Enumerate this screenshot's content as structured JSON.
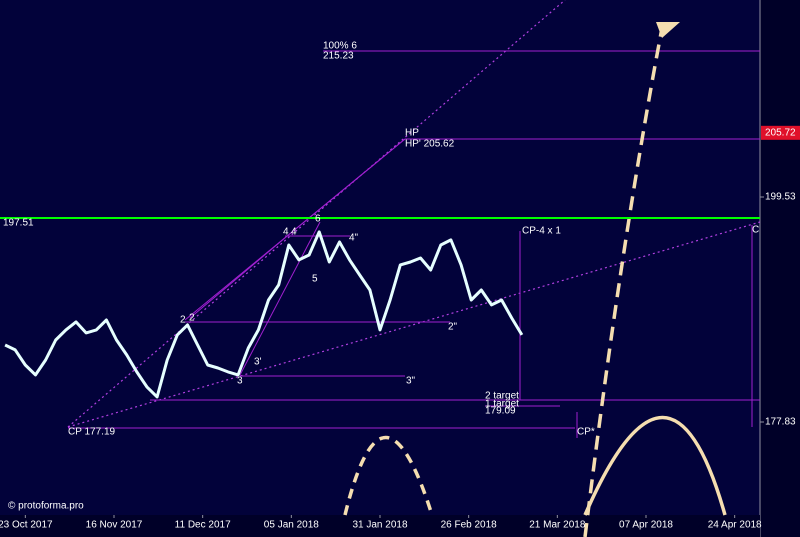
{
  "chart_data": {
    "type": "line",
    "series": [
      {
        "color": "#e6ffff",
        "x": [
          -4,
          -2,
          0,
          2,
          4,
          6,
          8,
          10,
          12,
          14,
          16,
          18,
          20,
          22,
          24,
          26,
          28,
          30,
          32,
          34,
          36,
          38,
          40,
          42,
          44,
          46,
          48,
          50,
          52,
          54,
          56,
          58,
          60,
          62,
          64,
          66,
          68,
          70,
          72,
          74,
          76,
          78,
          80,
          82,
          84,
          86,
          88,
          90,
          92,
          94,
          96,
          98
        ],
        "values": [
          185.26,
          184.78,
          183.33,
          182.37,
          183.81,
          185.74,
          186.71,
          187.48,
          186.42,
          186.71,
          187.67,
          185.74,
          184.3,
          182.66,
          181.21,
          180.25,
          183.81,
          186.23,
          187.19,
          185.26,
          183.33,
          183.04,
          182.66,
          182.37,
          184.97,
          186.71,
          189.6,
          191.05,
          194.9,
          193.46,
          193.94,
          196.16,
          193.26,
          195.19,
          193.46,
          192.01,
          190.56,
          186.71,
          189.6,
          192.98,
          193.26,
          193.65,
          192.49,
          194.9,
          195.39,
          192.98,
          189.6,
          190.56,
          189.12,
          189.6,
          187.86,
          186.23
        ]
      }
    ],
    "xlim": [
      -5,
      145
    ],
    "xticks": [
      {
        "value": 0,
        "label": "23 Oct 2017"
      },
      {
        "value": 17.5,
        "label": "16 Nov 2017"
      },
      {
        "value": 35,
        "label": "11 Dec 2017"
      },
      {
        "value": 52.5,
        "label": "05 Jan 2018"
      },
      {
        "value": 70,
        "label": "31 Jan 2018"
      },
      {
        "value": 87.5,
        "label": "26 Feb 2018"
      },
      {
        "value": 105,
        "label": "21 Mar 2018"
      },
      {
        "value": 122.5,
        "label": "07 Apr 2018"
      },
      {
        "value": 140,
        "label": "24 Apr 2018"
      }
    ],
    "ylim": [
      168.86,
      218.53
    ],
    "yticks": [
      199.53,
      177.83
    ],
    "price_marker": 205.72,
    "reference_line": {
      "value": 197.51,
      "color": "#00ff00"
    },
    "annotations": [
      "100% 6",
      "215.23",
      "HP",
      "HP' 205.62",
      "CP-4 x 1",
      "CP 177.19",
      "2 target",
      "1 target",
      "179.09",
      "CP*",
      "C"
    ],
    "wave_labels": [
      "2",
      "2",
      "4",
      "4",
      "6",
      "5",
      "3'",
      "3",
      "4\"",
      "2\"",
      "3\""
    ],
    "watermark": "© protoforma.pro"
  }
}
